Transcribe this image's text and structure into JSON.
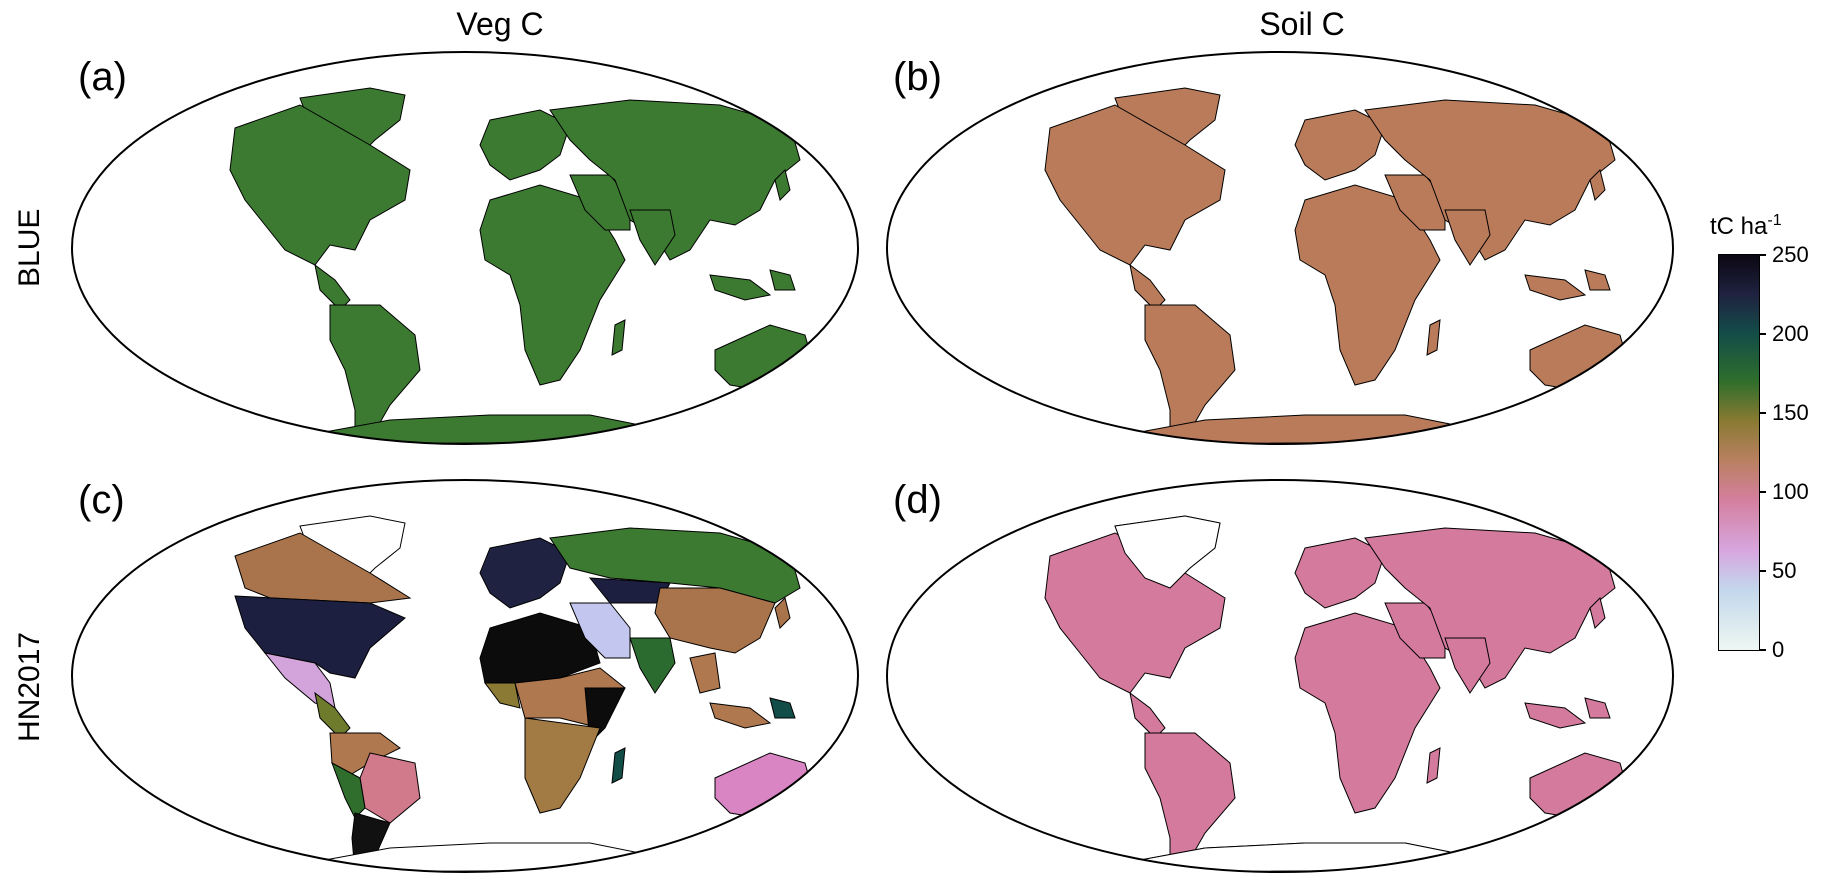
{
  "column_titles": [
    "Veg C",
    "Soil C"
  ],
  "row_labels": [
    "BLUE",
    "HN2017"
  ],
  "panels": [
    {
      "label": "(a)",
      "row": "BLUE",
      "column": "Veg C",
      "fill": "#3c7a31"
    },
    {
      "label": "(b)",
      "row": "BLUE",
      "column": "Soil C",
      "fill": "#b97b5a"
    },
    {
      "label": "(c)",
      "row": "HN2017",
      "column": "Veg C",
      "fill": "#b0784f"
    },
    {
      "label": "(d)",
      "row": "HN2017",
      "column": "Soil C",
      "fill": "#d47a9c"
    }
  ],
  "colorbar": {
    "title": "tC ha",
    "title_exponent": "-1",
    "min": 0,
    "max": 250,
    "ticks": [
      "250",
      "200",
      "150",
      "100",
      "50",
      "0"
    ],
    "colors": [
      "#0b0712",
      "#1f2240",
      "#134d48",
      "#2f6e2c",
      "#8a7a33",
      "#b98060",
      "#d47f9e",
      "#d7a7e0",
      "#c3d8ec",
      "#eef7f2"
    ]
  },
  "hn2017_veg_regions": {
    "us_canada_south": "#1c1f3f",
    "canada_north": "#a7744a",
    "mexico": "#d3a4dc",
    "brazil": "#d07a8c",
    "south_cone": "#111111",
    "central_africa": "#0c0c0c",
    "east_africa": "#a27a44",
    "russia": "#3b7a30",
    "china": "#a9744b",
    "middle_east": "#c3c6ee",
    "india": "#2c6b30",
    "australia": "#d985c4"
  }
}
